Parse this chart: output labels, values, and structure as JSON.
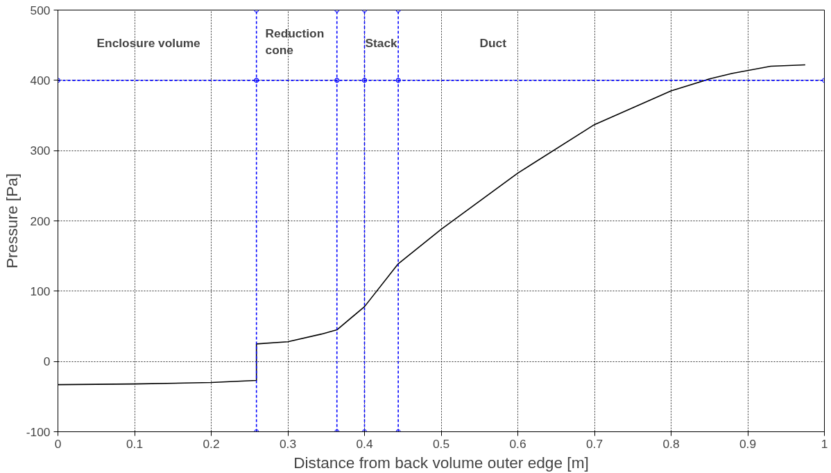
{
  "chart_data": {
    "type": "line",
    "xlabel": "Distance from back volume outer edge [m]",
    "ylabel": "Pressure [Pa]",
    "xlim": [
      0,
      1
    ],
    "ylim": [
      -100,
      500
    ],
    "xticks": [
      0,
      0.1,
      0.2,
      0.3,
      0.4,
      0.5,
      0.6,
      0.7,
      0.8,
      0.9,
      1
    ],
    "yticks": [
      -100,
      0,
      100,
      200,
      300,
      400,
      500
    ],
    "grid": true,
    "line_style": "solid",
    "marker": "none",
    "series": [
      {
        "color": "#000000",
        "x": [
          0,
          0.1,
          0.2,
          0.259,
          0.259,
          0.3,
          0.344,
          0.364,
          0.4,
          0.444,
          0.5,
          0.6,
          0.7,
          0.8,
          0.85,
          0.88,
          0.93,
          0.975
        ],
        "values": [
          -33,
          -32,
          -30,
          -27,
          25,
          28,
          39,
          45,
          78,
          139,
          188,
          268,
          337,
          385,
          402,
          410,
          420,
          422
        ]
      },
      {
        "color": "#0000ff",
        "line_style": "dashed",
        "marker": "circle",
        "x": [
          0.259,
          0.259,
          0.259
        ],
        "values": [
          -100,
          400,
          500
        ]
      },
      {
        "color": "#0000ff",
        "line_style": "dashed",
        "marker": "circle",
        "x": [
          0.364,
          0.364,
          0.364
        ],
        "values": [
          -100,
          400,
          500
        ]
      },
      {
        "color": "#0000ff",
        "line_style": "dashed",
        "marker": "circle",
        "x": [
          0.4,
          0.4,
          0.4
        ],
        "values": [
          -100,
          400,
          500
        ]
      },
      {
        "color": "#0000ff",
        "line_style": "dashed",
        "marker": "circle",
        "x": [
          0.444,
          0.444,
          0.444
        ],
        "values": [
          -100,
          400,
          500
        ]
      },
      {
        "color": "#0000ff",
        "line_style": "dashed",
        "marker": "circle",
        "x": [
          0,
          0.259,
          0.364,
          0.4,
          0.444,
          1
        ],
        "values": [
          400,
          400,
          400,
          400,
          400,
          400
        ]
      }
    ],
    "annotations": [
      "Enclosure volume",
      "Reduction\ncone",
      "Stack",
      "Duct"
    ]
  }
}
